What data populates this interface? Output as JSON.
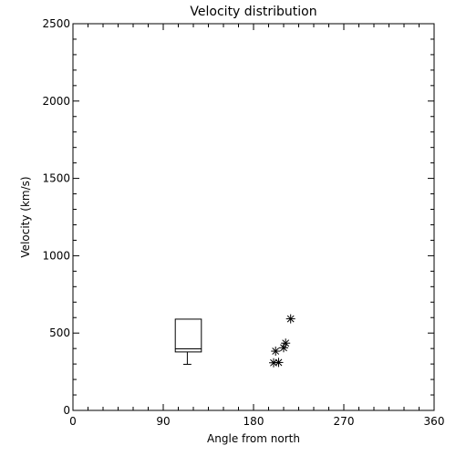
{
  "chart_data": {
    "type": "box-scatter",
    "title": "Velocity distribution",
    "xlabel": "Angle from north",
    "ylabel": "Velocity (km/s)",
    "xlim": [
      0,
      360
    ],
    "ylim": [
      0,
      2500
    ],
    "xticks": [
      0,
      90,
      180,
      270,
      360
    ],
    "yticks": [
      0,
      500,
      1000,
      1500,
      2000,
      2500
    ],
    "grid": false,
    "box": {
      "x_left": 102,
      "x_right": 128,
      "whisker_x": 114,
      "min": 298,
      "q1": 378,
      "median": 398,
      "q3": 590,
      "whisker_cap": [
        110,
        118
      ]
    },
    "points": [
      {
        "x": 200,
        "y": 308
      },
      {
        "x": 205,
        "y": 310
      },
      {
        "x": 202,
        "y": 383
      },
      {
        "x": 210,
        "y": 405
      },
      {
        "x": 212,
        "y": 435
      },
      {
        "x": 217,
        "y": 592
      }
    ]
  }
}
